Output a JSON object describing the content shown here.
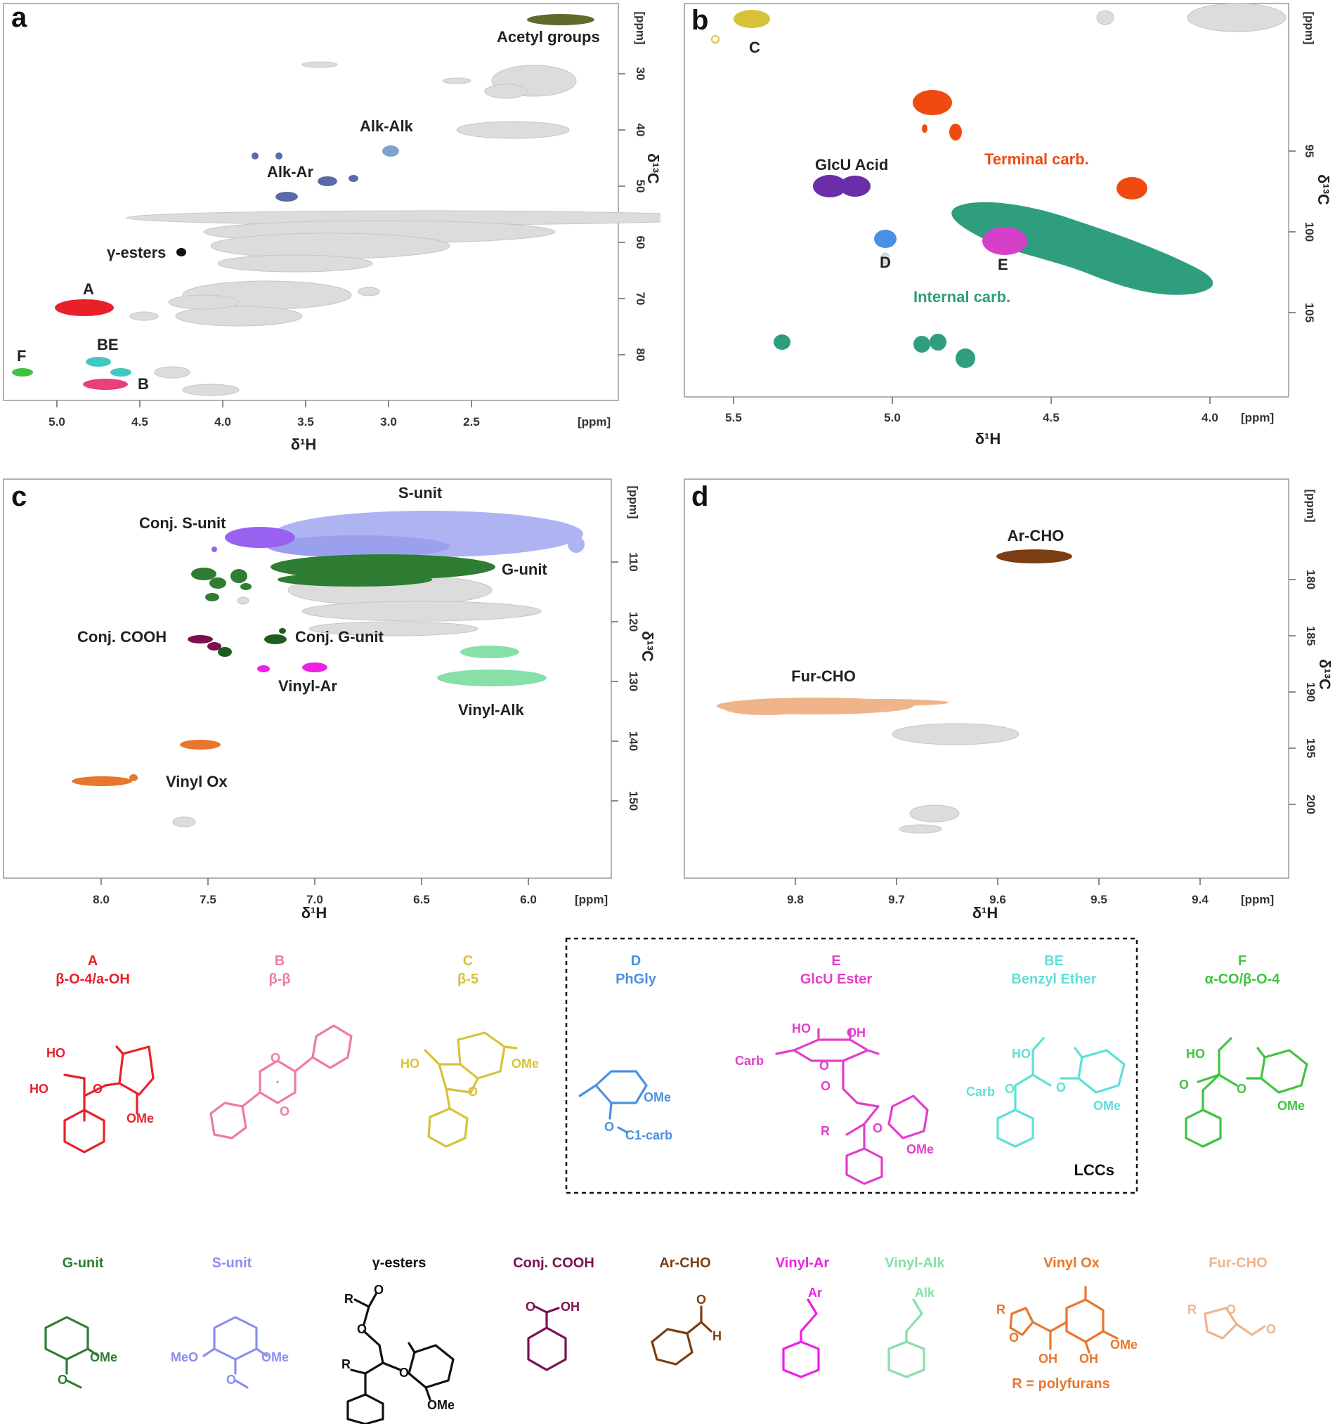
{
  "panels": {
    "a": {
      "letter": "a",
      "xlabel": "δ¹H",
      "ylabel": "δ¹³C",
      "unit": "[ppm]",
      "xticks": [
        "5.0",
        "4.5",
        "4.0",
        "3.5",
        "3.0",
        "2.5"
      ],
      "yticks": [
        "30",
        "40",
        "50",
        "60",
        "70",
        "80"
      ],
      "peaks": {
        "acetyl": "Acetyl groups",
        "alkalk": "Alk-Alk",
        "alkar": "Alk-Ar",
        "gesters": "γ-esters",
        "A": "A",
        "F": "F",
        "BE": "BE",
        "B": "B"
      }
    },
    "b": {
      "letter": "b",
      "xlabel": "δ¹H",
      "ylabel": "δ¹³C",
      "unit": "[ppm]",
      "xticks": [
        "5.5",
        "5.0",
        "4.5",
        "4.0"
      ],
      "yticks": [
        "95",
        "100",
        "105"
      ],
      "peaks": {
        "C": "C",
        "terminal": "Terminal carb.",
        "glcu": "GlcU Acid",
        "D": "D",
        "E": "E",
        "internal": "Internal carb."
      }
    },
    "c": {
      "letter": "c",
      "xlabel": "δ¹H",
      "ylabel": "δ¹³C",
      "unit": "[ppm]",
      "xticks": [
        "8.0",
        "7.5",
        "7.0",
        "6.5",
        "6.0"
      ],
      "yticks": [
        "110",
        "120",
        "130",
        "140",
        "150"
      ],
      "peaks": {
        "sunit": "S-unit",
        "conjs": "Conj. S-unit",
        "gunit": "G-unit",
        "conjcooh": "Conj. COOH",
        "conjg": "Conj. G-unit",
        "vinylar": "Vinyl-Ar",
        "vinylalk": "Vinyl-Alk",
        "vinylox": "Vinyl Ox"
      }
    },
    "d": {
      "letter": "d",
      "xlabel": "δ¹H",
      "ylabel": "δ¹³C",
      "unit": "[ppm]",
      "xticks": [
        "9.8",
        "9.7",
        "9.6",
        "9.5",
        "9.4"
      ],
      "yticks": [
        "180",
        "185",
        "190",
        "195",
        "200"
      ],
      "peaks": {
        "archo": "Ar-CHO",
        "furcho": "Fur-CHO"
      }
    }
  },
  "structures_row1": [
    {
      "letter": "A",
      "name": "β-O-4/a-OH",
      "color": "#e8202a"
    },
    {
      "letter": "B",
      "name": "β-β",
      "color": "#ee7aa6"
    },
    {
      "letter": "C",
      "name": "β-5",
      "color": "#d8c238"
    },
    {
      "letter": "D",
      "name": "PhGly",
      "color": "#4a90e2"
    },
    {
      "letter": "E",
      "name": "GlcU Ester",
      "color": "#e23ecb"
    },
    {
      "letter": "BE",
      "name": "Benzyl Ether",
      "color": "#5ee0d6"
    },
    {
      "letter": "F",
      "name": "α-CO/β-O-4",
      "color": "#3fc43f"
    }
  ],
  "lcc_label": "LCCs",
  "structures_row2": [
    {
      "name": "G-unit",
      "color": "#2e7d32"
    },
    {
      "name": "S-unit",
      "color": "#8b8ef0"
    },
    {
      "name": "γ-esters",
      "color": "#111111"
    },
    {
      "name": "Conj. COOH",
      "color": "#7a1050"
    },
    {
      "name": "Ar-CHO",
      "color": "#7a3e12"
    },
    {
      "name": "Vinyl-Ar",
      "color": "#ee1fe6"
    },
    {
      "name": "Vinyl-Alk",
      "color": "#86e0a8"
    },
    {
      "name": "Vinyl Ox",
      "color": "#e8762c"
    },
    {
      "name": "Fur-CHO",
      "color": "#f0b48a"
    }
  ],
  "atoms": {
    "HO": "HO",
    "OH": "OH",
    "O": "O",
    "OMe": "OMe",
    "MeO": "MeO",
    "Carb": "Carb",
    "C1carb": "C1-carb",
    "R": "R",
    "H": "H",
    "Ar": "Ar",
    "Alk": "Alk",
    "polyfurans": "R = polyfurans"
  }
}
